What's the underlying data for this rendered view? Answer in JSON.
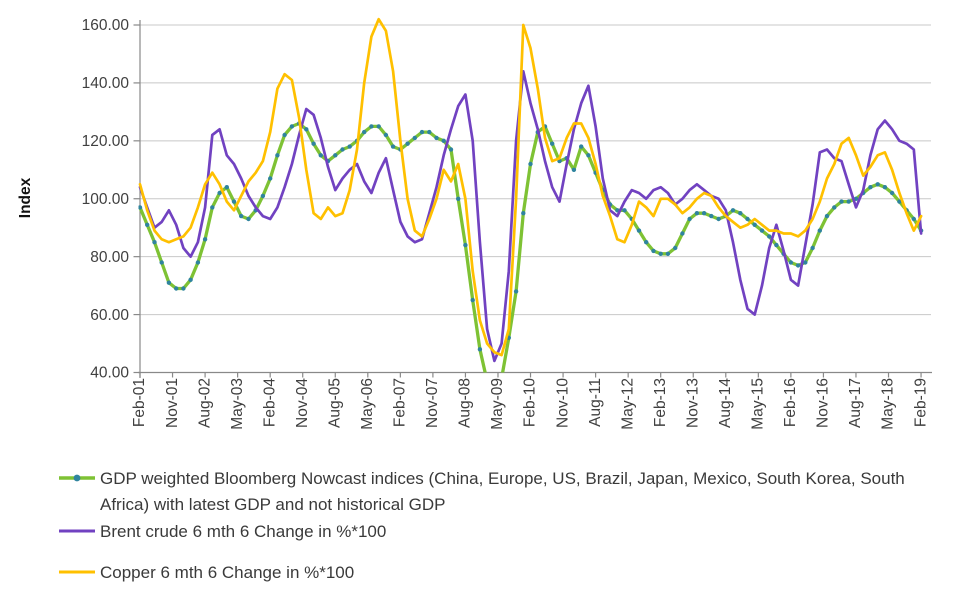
{
  "page": {
    "background": "#FFFFFF"
  },
  "chart_data": {
    "type": "line",
    "title": "",
    "xlabel": "",
    "ylabel": "Index",
    "ylim": [
      40,
      160
    ],
    "ytick_step": 20,
    "ytick_labels": [
      "40.00",
      "60.00",
      "80.00",
      "100.00",
      "120.00",
      "140.00",
      "160.00"
    ],
    "xtick_labels": [
      "Feb-01",
      "Nov-01",
      "Aug-02",
      "May-03",
      "Feb-04",
      "Nov-04",
      "Aug-05",
      "May-06",
      "Feb-07",
      "Nov-07",
      "Aug-08",
      "May-09",
      "Feb-10",
      "Nov-10",
      "Aug-11",
      "May-12",
      "Feb-13",
      "Nov-13",
      "Aug-14",
      "May-15",
      "Feb-16",
      "Nov-16",
      "Aug-17",
      "May-18",
      "Feb-19"
    ],
    "x_tick_interval_months": 9,
    "sample_step_months": 2,
    "x_range_months": [
      0,
      216
    ],
    "grid": "horizontal",
    "legend_position": "bottom-left",
    "colors": {
      "gdp_line": "#7EC234",
      "gdp_marker": "#2F849E",
      "brent_line": "#7142C1",
      "copper_line": "#FFC000",
      "gridline": "#C8C8C8",
      "axis": "#898989",
      "tick_label": "#404040",
      "legend_text": "#3A3A3A"
    },
    "series": [
      {
        "name": "GDP weighted Bloomberg Nowcast indices (China, Europe, US, Brazil, Japan, Mexico, South Korea, South Africa) with latest GDP and not historical GDP",
        "color": "#7EC234",
        "marker": "dot",
        "marker_color": "#2F849E",
        "values": [
          97,
          91,
          85,
          78,
          71,
          69,
          69,
          72,
          78,
          86,
          97,
          102,
          104,
          99,
          94,
          93,
          96,
          101,
          107,
          115,
          122,
          125,
          126,
          124,
          119,
          115,
          113,
          115,
          117,
          118,
          120,
          123,
          125,
          125,
          122,
          118,
          117,
          119,
          121,
          123,
          123,
          121,
          120,
          117,
          100,
          84,
          65,
          48,
          37,
          34,
          38,
          52,
          68,
          95,
          112,
          123,
          125,
          119,
          113,
          114,
          110,
          118,
          115,
          109,
          103,
          98,
          96,
          96,
          93,
          89,
          85,
          82,
          81,
          81,
          83,
          88,
          93,
          95,
          95,
          94,
          93,
          94,
          96,
          95,
          93,
          91,
          89,
          87,
          84,
          81,
          78,
          77,
          78,
          83,
          89,
          94,
          97,
          99,
          99,
          100,
          102,
          104,
          105,
          104,
          102,
          99,
          96,
          93,
          89
        ]
      },
      {
        "name": "Brent crude 6 mth 6 Change in %*100",
        "color": "#7142C1",
        "marker": "none",
        "values": [
          104,
          97,
          90,
          92,
          96,
          91,
          83,
          80,
          85,
          97,
          122,
          124,
          115,
          112,
          107,
          101,
          97,
          94,
          93,
          97,
          104,
          112,
          122,
          131,
          129,
          121,
          111,
          103,
          107,
          110,
          112,
          106,
          102,
          109,
          114,
          103,
          92,
          87,
          85,
          86,
          95,
          104,
          115,
          124,
          132,
          136,
          120,
          85,
          55,
          44,
          50,
          75,
          120,
          144,
          133,
          124,
          113,
          104,
          99,
          112,
          124,
          133,
          139,
          125,
          107,
          96,
          94,
          99,
          103,
          102,
          100,
          103,
          104,
          102,
          98,
          100,
          103,
          105,
          103,
          101,
          100,
          96,
          85,
          72,
          62,
          60,
          70,
          83,
          91,
          82,
          72,
          70,
          84,
          98,
          116,
          117,
          114,
          113,
          105,
          97,
          103,
          115,
          124,
          127,
          124,
          120,
          119,
          117,
          88
        ]
      },
      {
        "name": "Copper 6 mth 6 Change in %*100",
        "color": "#FFC000",
        "marker": "none",
        "values": [
          105,
          96,
          89,
          86,
          85,
          86,
          87,
          90,
          97,
          105,
          109,
          105,
          99,
          96,
          101,
          106,
          109,
          113,
          123,
          138,
          143,
          141,
          128,
          110,
          95,
          93,
          97,
          94,
          95,
          103,
          117,
          140,
          156,
          162,
          158,
          144,
          120,
          100,
          89,
          87,
          93,
          100,
          110,
          106,
          112,
          100,
          75,
          58,
          50,
          47,
          46,
          55,
          100,
          160,
          152,
          138,
          121,
          113,
          114,
          121,
          126,
          126,
          121,
          112,
          101,
          94,
          86,
          85,
          91,
          99,
          97,
          94,
          100,
          100,
          98,
          95,
          97,
          100,
          102,
          101,
          97,
          94,
          92,
          90,
          91,
          93,
          91,
          89,
          89,
          88,
          88,
          87,
          89,
          93,
          99,
          107,
          112,
          119,
          121,
          115,
          108,
          111,
          115,
          116,
          110,
          102,
          95,
          89,
          94
        ]
      }
    ]
  }
}
